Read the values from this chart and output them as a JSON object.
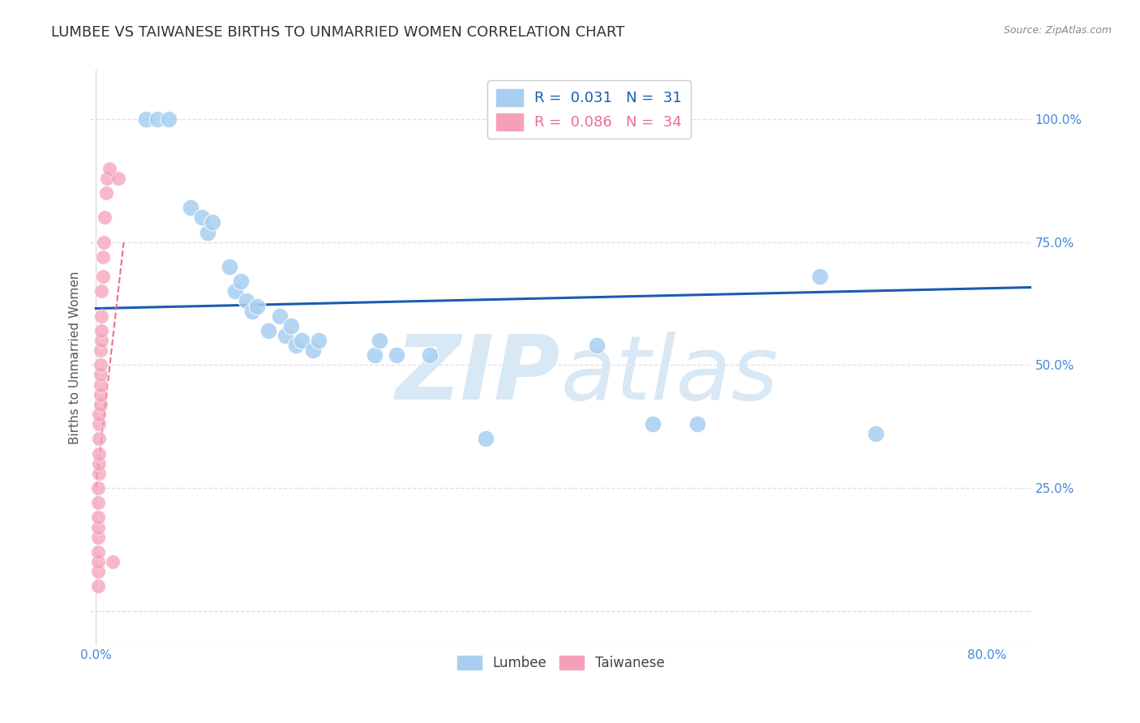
{
  "title": "LUMBEE VS TAIWANESE BIRTHS TO UNMARRIED WOMEN CORRELATION CHART",
  "source": "Source: ZipAtlas.com",
  "ylabel_left": "Births to Unmarried Women",
  "y_ticks_right": [
    0.0,
    0.25,
    0.5,
    0.75,
    1.0
  ],
  "y_tick_labels_right": [
    "",
    "25.0%",
    "50.0%",
    "75.0%",
    "100.0%"
  ],
  "xlim": [
    -0.005,
    0.84
  ],
  "ylim": [
    -0.07,
    1.1
  ],
  "legend_blue_label": "R =  0.031   N =  31",
  "legend_pink_label": "R =  0.086   N =  34",
  "legend_lumbee": "Lumbee",
  "legend_taiwanese": "Taiwanese",
  "blue_color": "#A8CFF0",
  "pink_color": "#F5A0B8",
  "trend_blue_color": "#1A5CB0",
  "trend_pink_color": "#E87090",
  "watermark_color": "#D8E8F5",
  "lumbee_x": [
    0.045,
    0.055,
    0.065,
    0.085,
    0.095,
    0.1,
    0.105,
    0.12,
    0.125,
    0.13,
    0.135,
    0.14,
    0.145,
    0.155,
    0.165,
    0.17,
    0.175,
    0.18,
    0.185,
    0.195,
    0.2,
    0.25,
    0.255,
    0.27,
    0.3,
    0.35,
    0.45,
    0.5,
    0.54,
    0.65,
    0.7
  ],
  "lumbee_y": [
    1.0,
    1.0,
    1.0,
    0.82,
    0.8,
    0.77,
    0.79,
    0.7,
    0.65,
    0.67,
    0.63,
    0.61,
    0.62,
    0.57,
    0.6,
    0.56,
    0.58,
    0.54,
    0.55,
    0.53,
    0.55,
    0.52,
    0.55,
    0.52,
    0.52,
    0.35,
    0.54,
    0.38,
    0.38,
    0.68,
    0.36
  ],
  "taiwanese_x": [
    0.002,
    0.002,
    0.002,
    0.002,
    0.002,
    0.002,
    0.002,
    0.002,
    0.002,
    0.003,
    0.003,
    0.003,
    0.003,
    0.003,
    0.003,
    0.004,
    0.004,
    0.004,
    0.004,
    0.004,
    0.004,
    0.005,
    0.005,
    0.005,
    0.005,
    0.006,
    0.006,
    0.007,
    0.008,
    0.009,
    0.01,
    0.012,
    0.015,
    0.02
  ],
  "taiwanese_y": [
    0.05,
    0.08,
    0.1,
    0.12,
    0.15,
    0.17,
    0.19,
    0.22,
    0.25,
    0.28,
    0.3,
    0.32,
    0.35,
    0.38,
    0.4,
    0.42,
    0.44,
    0.46,
    0.48,
    0.5,
    0.53,
    0.55,
    0.57,
    0.6,
    0.65,
    0.68,
    0.72,
    0.75,
    0.8,
    0.85,
    0.88,
    0.9,
    0.1,
    0.88
  ],
  "lumbee_trend_x": [
    0.0,
    0.84
  ],
  "lumbee_trend_y": [
    0.615,
    0.658
  ],
  "taiwanese_trend_x": [
    0.0,
    0.025
  ],
  "taiwanese_trend_y": [
    0.25,
    0.75
  ],
  "bg_color": "#FFFFFF",
  "grid_color": "#DDDDEE",
  "title_fontsize": 13,
  "axis_label_fontsize": 11,
  "tick_fontsize": 11
}
